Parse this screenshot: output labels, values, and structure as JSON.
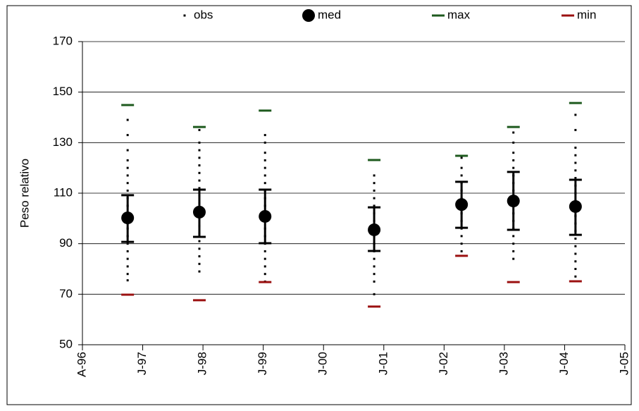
{
  "chart_data": {
    "type": "dotplot",
    "y_label": "Peso relativo",
    "ylim": [
      50,
      170
    ],
    "yticks": [
      50,
      70,
      90,
      110,
      130,
      150,
      170
    ],
    "grid": true,
    "xlim": [
      0,
      9
    ],
    "xticks": [
      {
        "value": 0,
        "label": "A-96"
      },
      {
        "value": 1,
        "label": "J-97"
      },
      {
        "value": 2,
        "label": "J-98"
      },
      {
        "value": 3,
        "label": "J-99"
      },
      {
        "value": 4,
        "label": "J-00"
      },
      {
        "value": 5,
        "label": "J-01"
      },
      {
        "value": 6,
        "label": "J-02"
      },
      {
        "value": 7,
        "label": "J-03"
      },
      {
        "value": 8,
        "label": "J-04"
      },
      {
        "value": 9,
        "label": "J-05"
      }
    ],
    "x": [
      0.75,
      1.94,
      3.03,
      4.84,
      6.29,
      7.15,
      8.18
    ],
    "series": [
      {
        "name": "obs",
        "color": "#000000",
        "values": [
          [
            75.5,
            78,
            81,
            84,
            87,
            90,
            93,
            96,
            99,
            102,
            105,
            108,
            111,
            114,
            117,
            120,
            123,
            127,
            133,
            139
          ],
          [
            79,
            82,
            85,
            88,
            91,
            94,
            97,
            100,
            103,
            106,
            109,
            112,
            115,
            118,
            121,
            124,
            127,
            130,
            135
          ],
          [
            75,
            78,
            81,
            84,
            87,
            90,
            93,
            96,
            99,
            102,
            105,
            108,
            111,
            114,
            117,
            120,
            123,
            126,
            130,
            133
          ],
          [
            70,
            75,
            78,
            81,
            84,
            87,
            90,
            93,
            96,
            99,
            102,
            105,
            108,
            111,
            114,
            117
          ],
          [
            87,
            90,
            93,
            96,
            99,
            102,
            105,
            108,
            111,
            114,
            117,
            120,
            124
          ],
          [
            84,
            87,
            90,
            93,
            96,
            99,
            102,
            105,
            108,
            111,
            114,
            117,
            120,
            123,
            126,
            130,
            134
          ],
          [
            77,
            80,
            83,
            86,
            89,
            92,
            95,
            98,
            101,
            104,
            107,
            110,
            113,
            116,
            119,
            122,
            125,
            128,
            135,
            141
          ]
        ]
      },
      {
        "name": "med",
        "color": "#000000",
        "values": [
          100.2,
          102.5,
          100.8,
          95.5,
          105.5,
          106.9,
          104.7
        ]
      },
      {
        "name": "max",
        "color": "#1e5a1e",
        "values": [
          144.9,
          136.2,
          142.7,
          123.1,
          124.8,
          136.2,
          145.7
        ]
      },
      {
        "name": "min",
        "color": "#9b1010",
        "values": [
          69.8,
          67.6,
          74.8,
          65.1,
          85.2,
          74.8,
          75.1
        ]
      }
    ],
    "error_bars": {
      "color": "#000000",
      "upper": [
        109.2,
        111.4,
        111.4,
        104.4,
        114.5,
        118.4,
        115.3
      ],
      "lower": [
        90.7,
        92.7,
        90.2,
        87.1,
        96.3,
        95.5,
        93.5
      ]
    }
  }
}
